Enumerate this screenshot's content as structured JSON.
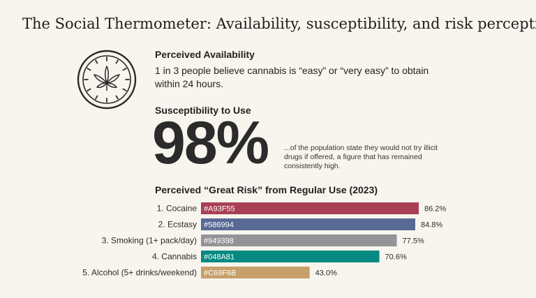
{
  "title": "The Social Thermometer: Availability, susceptibility, and risk perception.",
  "availability": {
    "heading": "Perceived Availability",
    "text": "1 in 3 people believe cannabis is “easy” or “very easy” to obtain within 24 hours.",
    "icon": "cannabis-leaf-clock-icon"
  },
  "susceptibility": {
    "heading": "Susceptibility to Use",
    "big_value": "98%",
    "text": "...of the population state they would not try illicit drugs if offered, a figure that has remained consistently high."
  },
  "risk": {
    "heading": "Perceived “Great Risk” from Regular Use (2023)"
  },
  "chart_data": {
    "type": "bar",
    "orientation": "horizontal",
    "title": "Perceived “Great Risk” from Regular Use (2023)",
    "categories": [
      "1. Cocaine",
      "2. Ecstasy",
      "3. Smoking (1+ pack/day)",
      "4. Cannabis",
      "5. Alcohol (5+ drinks/weekend)"
    ],
    "values": [
      86.2,
      84.8,
      77.5,
      70.6,
      43.0
    ],
    "value_labels": [
      "86.2%",
      "84.8%",
      "77.5%",
      "70.6%",
      "43.0%"
    ],
    "colors": [
      "#A93F55",
      "#586994",
      "#949398",
      "#048A81",
      "#C69F6B"
    ],
    "bar_text": [
      "#A93F55",
      "#586994",
      "#949398",
      "#048A81",
      "#C69F6B"
    ],
    "xlim": [
      0,
      100
    ],
    "unit": "%"
  }
}
